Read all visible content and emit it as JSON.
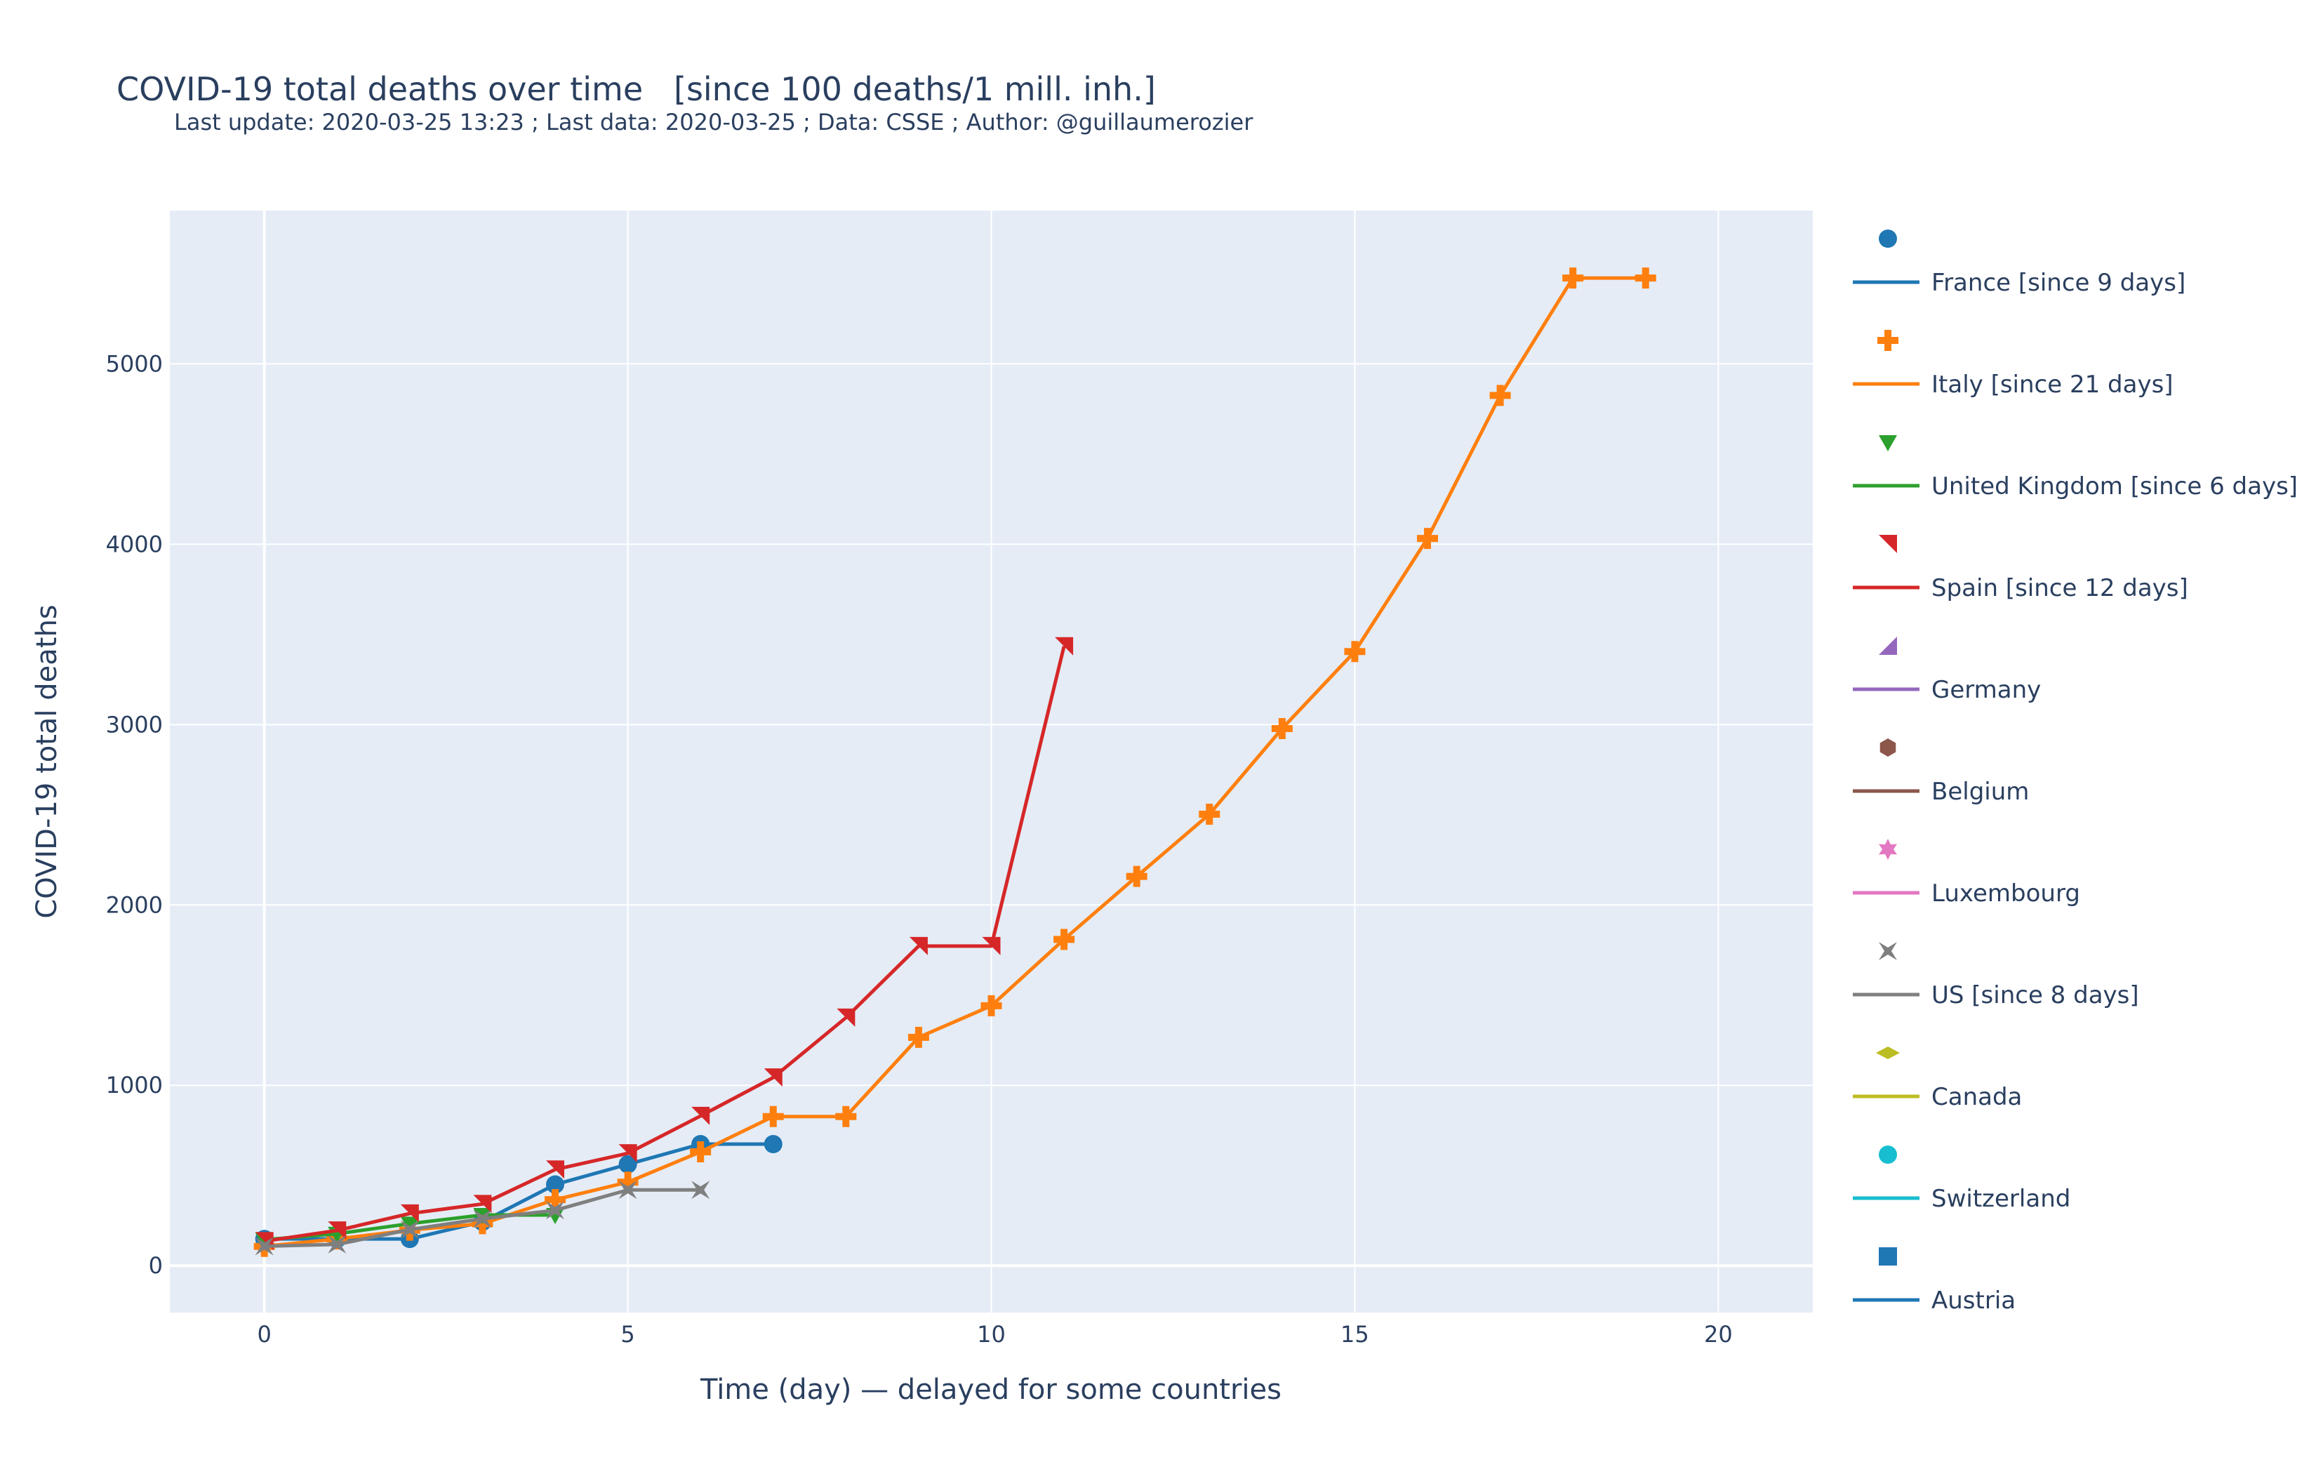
{
  "chart_data": {
    "type": "line",
    "title": "COVID-19 total deaths over time   [since 100 deaths/1 mill. inh.]",
    "subtitle": "Last update: 2020-03-25 13:23 ; Last data: 2020-03-25 ; Data: CSSE ; Author: @guillaumerozier",
    "xlabel": "Time (day) — delayed for some countries",
    "ylabel": "COVID-19 total deaths",
    "xlim": [
      -1.3,
      21.3
    ],
    "ylim": [
      -260,
      5850
    ],
    "xticks": [
      0,
      5,
      10,
      15,
      20
    ],
    "yticks": [
      0,
      1000,
      2000,
      3000,
      4000,
      5000
    ],
    "grid": true,
    "legend_position": "right",
    "series": [
      {
        "name": "France [since 9 days]",
        "color": "#1f77b4",
        "marker": "circle",
        "x": [
          0,
          1,
          2,
          3,
          4,
          5,
          6,
          7
        ],
        "y": [
          148,
          148,
          148,
          243,
          450,
          562,
          674,
          674
        ]
      },
      {
        "name": "Italy [since 21 days]",
        "color": "#ff7f0e",
        "marker": "cross",
        "x": [
          0,
          1,
          2,
          3,
          4,
          5,
          6,
          7,
          8,
          9,
          10,
          11,
          12,
          13,
          14,
          15,
          16,
          17,
          18,
          19
        ],
        "y": [
          107,
          148,
          197,
          233,
          366,
          463,
          631,
          827,
          827,
          1266,
          1441,
          1809,
          2158,
          2503,
          2978,
          3405,
          4032,
          4825,
          5476,
          5476
        ]
      },
      {
        "name": "United Kingdom [since 6 days]",
        "color": "#2ca02c",
        "marker": "triangle-down",
        "x": [
          0,
          1,
          2,
          3,
          4
        ],
        "y": [
          144,
          177,
          233,
          281,
          281
        ]
      },
      {
        "name": "Spain [since 12 days]",
        "color": "#d62728",
        "marker": "triangle-ne",
        "x": [
          0,
          1,
          2,
          3,
          4,
          5,
          6,
          7,
          8,
          9,
          10,
          11
        ],
        "y": [
          136,
          195,
          289,
          342,
          533,
          623,
          830,
          1043,
          1375,
          1772,
          1772,
          3434
        ]
      },
      {
        "name": "Germany",
        "color": "#9467bd",
        "marker": "triangle-sw",
        "x": [],
        "y": []
      },
      {
        "name": "Belgium",
        "color": "#8c564b",
        "marker": "hexagon",
        "x": [],
        "y": []
      },
      {
        "name": "Luxembourg",
        "color": "#e377c2",
        "marker": "star",
        "x": [],
        "y": []
      },
      {
        "name": "US [since 8 days]",
        "color": "#7f7f7f",
        "marker": "bowtie",
        "x": [
          0,
          1,
          2,
          3,
          4,
          5,
          6
        ],
        "y": [
          108,
          118,
          200,
          260,
          307,
          420,
          420
        ]
      },
      {
        "name": "Canada",
        "color": "#bcbd22",
        "marker": "diamond-wide",
        "x": [],
        "y": []
      },
      {
        "name": "Switzerland",
        "color": "#17becf",
        "marker": "circle",
        "x": [],
        "y": []
      },
      {
        "name": "Austria",
        "color": "#1f77b4",
        "marker": "square",
        "x": [],
        "y": []
      }
    ]
  }
}
